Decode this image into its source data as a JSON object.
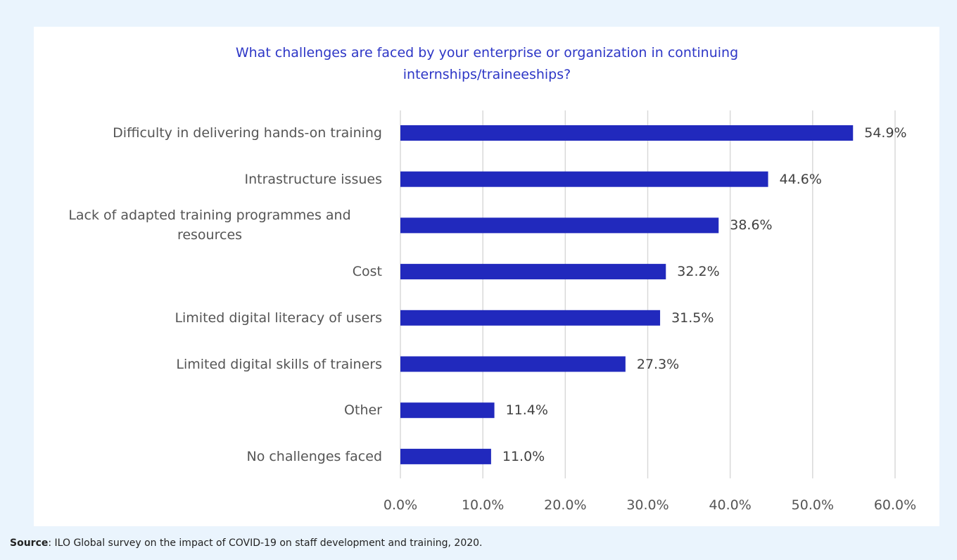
{
  "chart_data": {
    "type": "bar",
    "orientation": "horizontal",
    "title": "What challenges are faced by your enterprise or organization in continuing internships/traineeships?",
    "categories": [
      "Difficulty in delivering hands-on training",
      "Intrastructure issues",
      "Lack of adapted training programmes and resources",
      "Cost",
      "Limited digital literacy of users",
      "Limited digital skills of trainers",
      "Other",
      "No challenges faced"
    ],
    "values": [
      54.9,
      44.6,
      38.6,
      32.2,
      31.5,
      27.3,
      11.4,
      11.0
    ],
    "value_labels": [
      "54.9%",
      "44.6%",
      "38.6%",
      "32.2%",
      "31.5%",
      "27.3%",
      "11.4%",
      "11.0%"
    ],
    "color": "#2129bd",
    "xlim": [
      0,
      60
    ],
    "xticks": [
      {
        "value": 0,
        "label": "0.0%"
      },
      {
        "value": 10,
        "label": "10.0%"
      },
      {
        "value": 20,
        "label": "20.0%"
      },
      {
        "value": 30,
        "label": "30.0%"
      },
      {
        "value": 40,
        "label": "40.0%"
      },
      {
        "value": 50,
        "label": "50.0%"
      },
      {
        "value": 60,
        "label": "60.0%"
      }
    ],
    "grid": true
  },
  "source": {
    "label": "Source",
    "text": ": ILO Global survey on the impact of COVID-19 on staff development and training, 2020."
  }
}
